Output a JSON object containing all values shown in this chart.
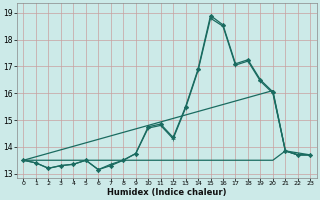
{
  "xlabel": "Humidex (Indice chaleur)",
  "background_color": "#cceae8",
  "grid_color": "#aacfcc",
  "line_color": "#1a6b60",
  "xlim": [
    -0.5,
    23.5
  ],
  "ylim": [
    12.85,
    19.35
  ],
  "yticks": [
    13,
    14,
    15,
    16,
    17,
    18,
    19
  ],
  "xticks": [
    0,
    1,
    2,
    3,
    4,
    5,
    6,
    7,
    8,
    9,
    10,
    11,
    12,
    13,
    14,
    15,
    16,
    17,
    18,
    19,
    20,
    21,
    22,
    23
  ],
  "series": [
    {
      "x": [
        0,
        1,
        2,
        3,
        4,
        5,
        6,
        7,
        8,
        9,
        10,
        11,
        12,
        13,
        14,
        15,
        16,
        17,
        18,
        19,
        20,
        21,
        22,
        23
      ],
      "y": [
        13.5,
        13.4,
        13.2,
        13.3,
        13.35,
        13.5,
        13.15,
        13.3,
        13.5,
        13.75,
        14.75,
        14.85,
        14.35,
        15.5,
        16.9,
        18.9,
        18.55,
        17.1,
        17.25,
        16.5,
        16.05,
        13.85,
        13.7,
        13.7
      ],
      "marker": "D",
      "markersize": 2.2,
      "linewidth": 0.9
    },
    {
      "x": [
        0,
        1,
        2,
        3,
        4,
        5,
        6,
        7,
        8,
        9,
        10,
        11,
        12,
        13,
        14,
        15,
        16,
        17,
        18,
        19,
        20,
        21,
        22,
        23
      ],
      "y": [
        13.5,
        13.4,
        13.2,
        13.3,
        13.35,
        13.5,
        13.15,
        13.35,
        13.5,
        13.75,
        14.7,
        14.8,
        14.3,
        15.45,
        16.85,
        18.8,
        18.5,
        17.05,
        17.2,
        16.45,
        16.0,
        13.85,
        13.7,
        13.7
      ],
      "marker": "P",
      "markersize": 2.2,
      "linewidth": 0.9
    },
    {
      "x": [
        0,
        20,
        21,
        23
      ],
      "y": [
        13.5,
        16.1,
        13.85,
        13.7
      ],
      "marker": null,
      "markersize": 0,
      "linewidth": 0.9
    },
    {
      "x": [
        0,
        14,
        20,
        21,
        22,
        23
      ],
      "y": [
        13.5,
        13.5,
        13.5,
        13.85,
        13.7,
        13.7
      ],
      "marker": null,
      "markersize": 0,
      "linewidth": 0.9
    }
  ]
}
